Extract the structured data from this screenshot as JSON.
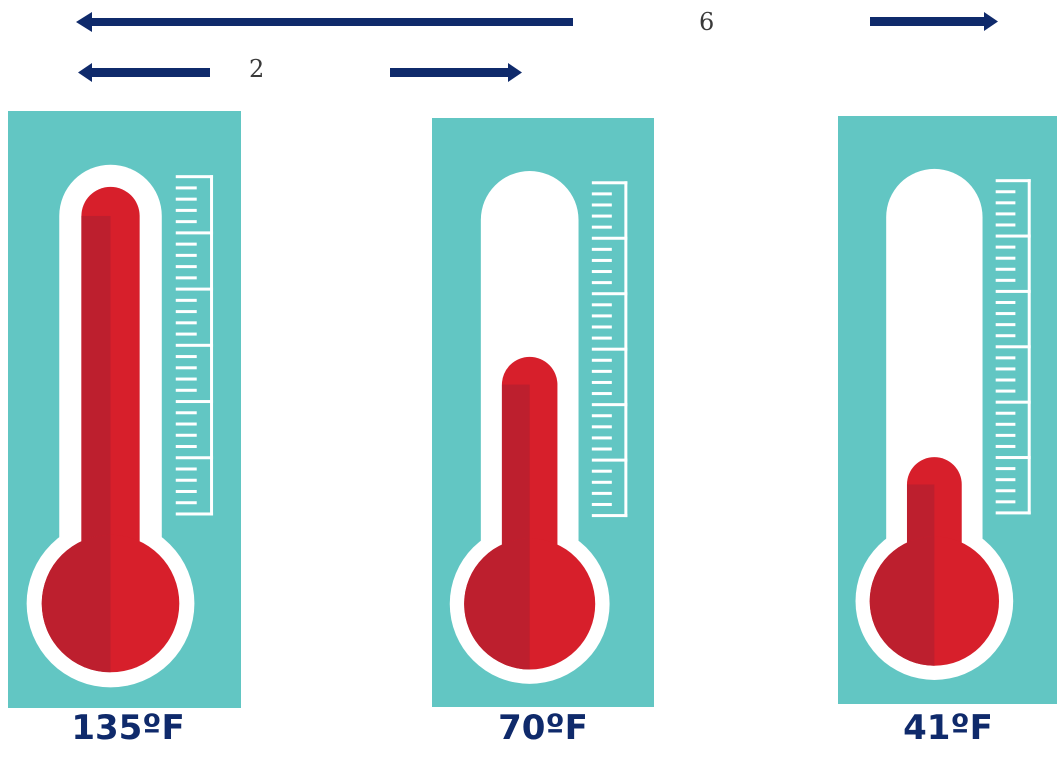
{
  "top_labels": {
    "long_span": "6",
    "short_span": "2"
  },
  "thermometers": [
    {
      "label": "135ºF",
      "fill_fraction": 1.0
    },
    {
      "label": "70ºF",
      "fill_fraction": 0.6
    },
    {
      "label": "41ºF",
      "fill_fraction": 0.35
    }
  ],
  "colors": {
    "panel": "#62c6c3",
    "tube": "#ffffff",
    "mercury": "#d71f2b",
    "mercury_shade": "#bd1f2e",
    "arrow": "#0f2a6b",
    "label": "#0f2a6b"
  }
}
